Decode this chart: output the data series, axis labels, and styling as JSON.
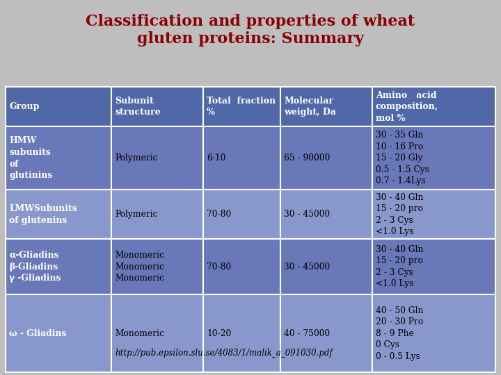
{
  "title": "Classification and properties of wheat\ngluten proteins: Summary",
  "title_color": "#8B0000",
  "background_color": "#BEBEBE",
  "header_bg": "#5068A8",
  "row_bg_dark": "#6878B8",
  "row_bg_light": "#8898CC",
  "border_color": "#FFFFFF",
  "headers": [
    "Group",
    "Subunit\nstructure",
    "Total  fraction\n%",
    "Molecular\nweight, Da",
    "Amino   acid\ncomposition,\nmol %"
  ],
  "rows": [
    {
      "group": "HMW\nsubunits\nof\nglutinins",
      "subunit": "Polymeric",
      "fraction": "6-10",
      "mol_weight": "65 - 90000",
      "amino": "30 - 35 Gln\n10 - 16 Pro\n15 - 20 Gly\n0.5 - 1.5 Cys\n0.7 - 1.4Lys"
    },
    {
      "group": "LMWSubunits\nof glutenins",
      "subunit": "Polymeric",
      "fraction": "70-80",
      "mol_weight": "30 - 45000",
      "amino": "30 - 40 Gln\n15 - 20 pro\n2 - 3 Cys\n<1.0 Lys"
    },
    {
      "group": "α-Gliadins\nβ-Gliadins\nγ -Gliadins",
      "subunit": "Monomeric\nMonomeric\nMonomeric",
      "fraction": "70-80",
      "mol_weight": "30 - 45000",
      "amino": "30 - 40 Gln\n15 - 20 pro\n2 - 3 Cys\n<1.0 Lys"
    },
    {
      "group": "ω - Gliadins",
      "subunit": "Monomeric",
      "fraction": "10-20",
      "mol_weight": "40 - 75000",
      "amino": "40 - 50 Gln\n20 - 30 Pro\n8 - 9 Phe\n0 Cys\n0 - 0.5 Lys"
    }
  ],
  "footer": "http://pub.epsilon.slu.se/4083/1/malik_a_091030.pdf",
  "figsize": [
    7.2,
    5.4
  ],
  "dpi": 100
}
